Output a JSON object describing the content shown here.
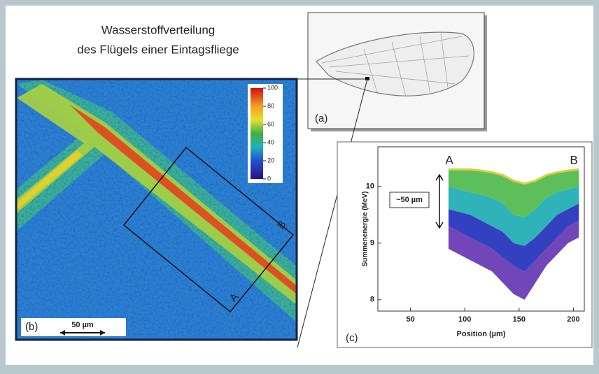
{
  "title_lines": [
    "Wasserstoffverteilung",
    "des Flügels einer Eintagsfliege"
  ],
  "panel_a": {
    "label": "(a)"
  },
  "panel_b": {
    "label": "(b)",
    "scale_bar": "50 µm",
    "marker_a": "A",
    "marker_b": "B",
    "colorbar": {
      "ticks": [
        100,
        80,
        60,
        40,
        20,
        0
      ]
    }
  },
  "chart_data": {
    "type": "area",
    "xlabel": "Position (µm)",
    "ylabel": "Summenenergie (MeV)",
    "annotations": {
      "a": "A",
      "b": "B",
      "width": "~50 µm",
      "panel": "(c)"
    },
    "x": [
      85,
      95,
      105,
      115,
      125,
      135,
      145,
      155,
      165,
      175,
      185,
      195,
      205
    ],
    "series": [
      {
        "color": "#d8d040",
        "values": [
          10.3,
          10.3,
          10.3,
          10.28,
          10.25,
          10.2,
          10.1,
          10.05,
          10.1,
          10.2,
          10.25,
          10.28,
          10.3
        ]
      },
      {
        "color": "#5cbf5a",
        "values": [
          10.0,
          9.95,
          9.9,
          9.85,
          9.8,
          9.7,
          9.5,
          9.45,
          9.6,
          9.8,
          9.9,
          9.95,
          10.0
        ]
      },
      {
        "color": "#2fb3b8",
        "values": [
          9.6,
          9.55,
          9.5,
          9.4,
          9.3,
          9.2,
          9.0,
          8.95,
          9.1,
          9.3,
          9.5,
          9.6,
          9.7
        ]
      },
      {
        "color": "#3340c0",
        "values": [
          9.3,
          9.2,
          9.1,
          9.0,
          8.9,
          8.75,
          8.6,
          8.5,
          8.7,
          8.9,
          9.1,
          9.3,
          9.4
        ]
      },
      {
        "color": "#7046b8",
        "values": [
          8.9,
          8.8,
          8.7,
          8.6,
          8.5,
          8.3,
          8.1,
          8.0,
          8.3,
          8.6,
          8.8,
          9.0,
          9.1
        ]
      }
    ],
    "xlim": [
      20,
      210
    ],
    "ylim": [
      7.8,
      10.7
    ],
    "xticks": [
      50,
      100,
      150,
      200
    ],
    "yticks": [
      8,
      9,
      10
    ]
  }
}
